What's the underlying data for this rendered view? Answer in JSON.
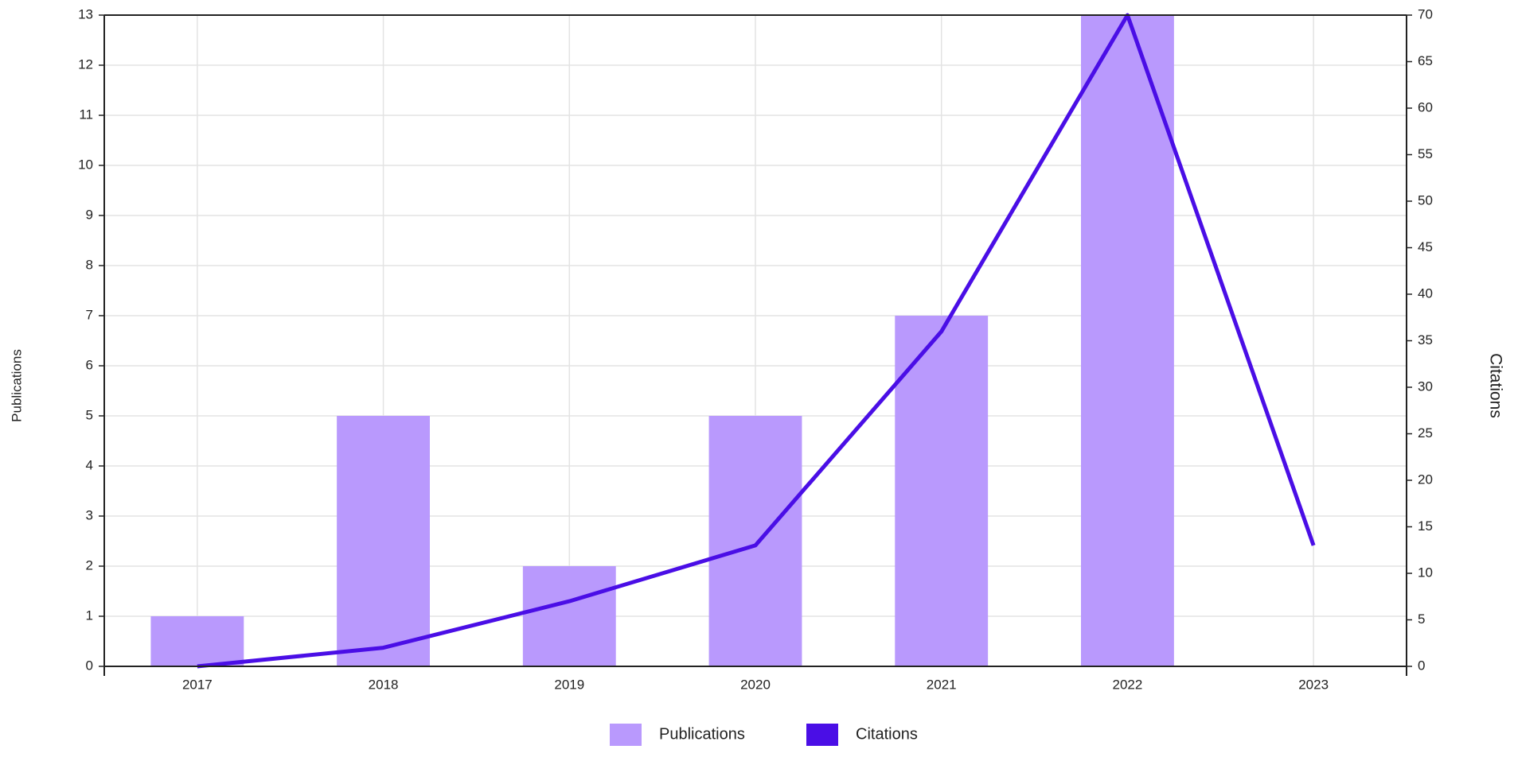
{
  "chart_data": {
    "type": "bar",
    "categories": [
      "2017",
      "2018",
      "2019",
      "2020",
      "2021",
      "2022",
      "2023"
    ],
    "series": [
      {
        "name": "Publications",
        "type": "bar",
        "color": "#b999fd",
        "values": [
          1,
          5,
          2,
          5,
          7,
          13,
          0
        ]
      },
      {
        "name": "Citations",
        "type": "line",
        "axis": "y2",
        "color": "#4a0ee6",
        "values": [
          0,
          2,
          7,
          13,
          36,
          70,
          13
        ]
      }
    ],
    "ylabel": "Publications",
    "y2label": "Citations",
    "ylim": [
      0,
      13
    ],
    "yticks": [
      0,
      1,
      2,
      3,
      4,
      5,
      6,
      7,
      8,
      9,
      10,
      11,
      12,
      13
    ],
    "y2lim": [
      0,
      70
    ],
    "y2ticks": [
      0,
      5,
      10,
      15,
      20,
      25,
      30,
      35,
      40,
      45,
      50,
      55,
      60,
      65,
      70
    ],
    "grid": true,
    "legend": "bottom"
  }
}
